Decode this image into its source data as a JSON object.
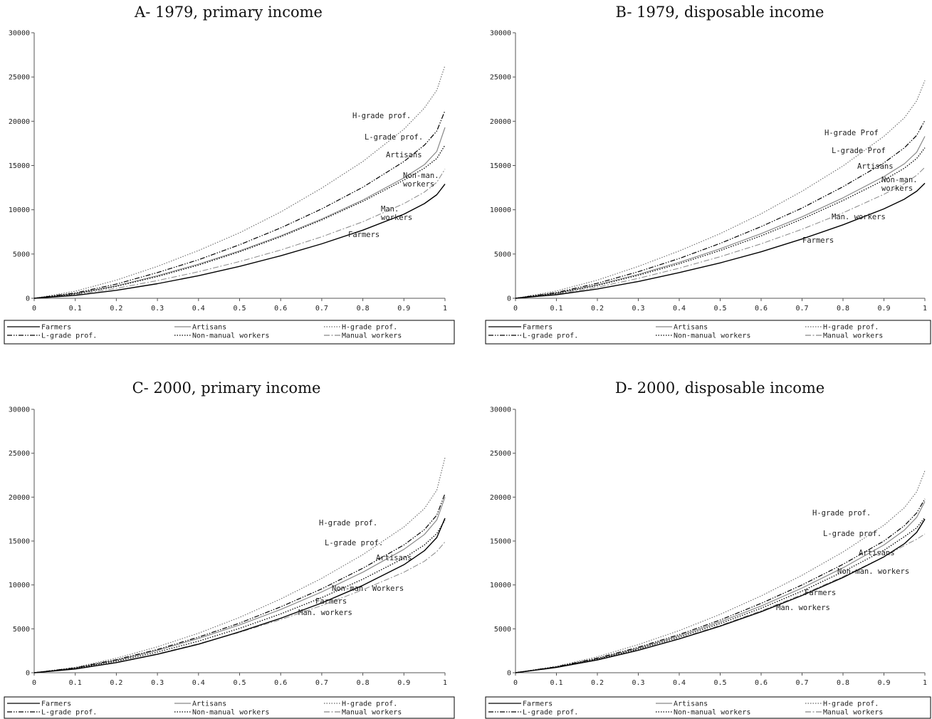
{
  "chart_data": [
    {
      "type": "line",
      "title": "A- 1979, primary income",
      "xlim": [
        0,
        1
      ],
      "ylim": [
        0,
        30000
      ],
      "x_ticks": [
        "0",
        "0.1",
        "0.2",
        "0.3",
        "0.4",
        "0.5",
        "0.6",
        "0.7",
        "0.8",
        "0.9",
        "1"
      ],
      "y_ticks": [
        "0",
        "5000",
        "10000",
        "15000",
        "20000",
        "25000",
        "30000"
      ],
      "legend_position": "bottom",
      "series": [
        {
          "name": "Farmers",
          "x": [
            0,
            0.1,
            0.2,
            0.3,
            0.4,
            0.5,
            0.6,
            0.7,
            0.8,
            0.9,
            0.95,
            0.98,
            1
          ],
          "y": [
            0,
            330,
            900,
            1650,
            2550,
            3600,
            4800,
            6150,
            7700,
            9500,
            10700,
            11700,
            12900
          ]
        },
        {
          "name": "Artisans",
          "x": [
            0,
            0.1,
            0.2,
            0.3,
            0.4,
            0.5,
            0.6,
            0.7,
            0.8,
            0.9,
            0.95,
            0.98,
            1
          ],
          "y": [
            0,
            520,
            1400,
            2550,
            3850,
            5350,
            7050,
            8950,
            11100,
            13600,
            15100,
            16600,
            19300
          ]
        },
        {
          "name": "H-grade prof.",
          "x": [
            0,
            0.1,
            0.2,
            0.3,
            0.4,
            0.5,
            0.6,
            0.7,
            0.8,
            0.9,
            0.95,
            0.98,
            1
          ],
          "y": [
            0,
            800,
            2050,
            3600,
            5400,
            7400,
            9750,
            12450,
            15450,
            19100,
            21500,
            23500,
            26300
          ]
        },
        {
          "name": "L-grade prof.",
          "x": [
            0,
            0.1,
            0.2,
            0.3,
            0.4,
            0.5,
            0.6,
            0.7,
            0.8,
            0.9,
            0.95,
            0.98,
            1
          ],
          "y": [
            0,
            600,
            1600,
            2900,
            4350,
            6050,
            7950,
            10100,
            12550,
            15450,
            17300,
            18900,
            21200
          ]
        },
        {
          "name": "Non-manual workers",
          "x": [
            0,
            0.1,
            0.2,
            0.3,
            0.4,
            0.5,
            0.6,
            0.7,
            0.8,
            0.9,
            0.95,
            0.98,
            1
          ],
          "y": [
            0,
            500,
            1350,
            2450,
            3750,
            5250,
            6950,
            8850,
            10950,
            13350,
            14700,
            15800,
            17300
          ]
        },
        {
          "name": "Manual workers",
          "x": [
            0,
            0.1,
            0.2,
            0.3,
            0.4,
            0.5,
            0.6,
            0.7,
            0.8,
            0.9,
            0.95,
            0.98,
            1
          ],
          "y": [
            0,
            420,
            1120,
            2000,
            3000,
            4150,
            5450,
            6950,
            8650,
            10700,
            12000,
            13100,
            14600
          ]
        }
      ],
      "annotations": [
        {
          "text": "H-grade prof.",
          "series": "H-grade prof."
        },
        {
          "text": "L-grade prof.",
          "series": "L-grade prof."
        },
        {
          "text": "Artisans",
          "series": "Artisans"
        },
        {
          "text": "Non-man.",
          "series": "Non-manual workers"
        },
        {
          "text": "workers",
          "series": "Non-manual workers"
        },
        {
          "text": "Man.",
          "series": "Manual workers"
        },
        {
          "text": "workers",
          "series": "Manual workers"
        },
        {
          "text": "Farmers",
          "series": "Farmers"
        }
      ]
    },
    {
      "type": "line",
      "title": "B- 1979, disposable income",
      "xlim": [
        0,
        1
      ],
      "ylim": [
        0,
        30000
      ],
      "x_ticks": [
        "0",
        "0.1",
        "0.2",
        "0.3",
        "0.4",
        "0.5",
        "0.6",
        "0.7",
        "0.8",
        "0.9",
        "1"
      ],
      "y_ticks": [
        "0",
        "5000",
        "10000",
        "15000",
        "20000",
        "25000",
        "30000"
      ],
      "legend_position": "bottom",
      "series": [
        {
          "name": "Farmers",
          "x": [
            0,
            0.1,
            0.2,
            0.3,
            0.4,
            0.5,
            0.6,
            0.7,
            0.8,
            0.9,
            0.95,
            0.98,
            1
          ],
          "y": [
            0,
            400,
            1050,
            1900,
            2900,
            4000,
            5250,
            6700,
            8300,
            10100,
            11200,
            12100,
            13000
          ]
        },
        {
          "name": "Artisans",
          "x": [
            0,
            0.1,
            0.2,
            0.3,
            0.4,
            0.5,
            0.6,
            0.7,
            0.8,
            0.9,
            0.95,
            0.98,
            1
          ],
          "y": [
            0,
            580,
            1520,
            2700,
            4050,
            5600,
            7300,
            9200,
            11350,
            13750,
            15200,
            16500,
            18300
          ]
        },
        {
          "name": "H-grade prof.",
          "x": [
            0,
            0.1,
            0.2,
            0.3,
            0.4,
            0.5,
            0.6,
            0.7,
            0.8,
            0.9,
            0.95,
            0.98,
            1
          ],
          "y": [
            0,
            820,
            2050,
            3600,
            5350,
            7300,
            9550,
            12100,
            14950,
            18300,
            20400,
            22300,
            24600
          ]
        },
        {
          "name": "L-grade prof.",
          "x": [
            0,
            0.1,
            0.2,
            0.3,
            0.4,
            0.5,
            0.6,
            0.7,
            0.8,
            0.9,
            0.95,
            0.98,
            1
          ],
          "y": [
            0,
            650,
            1700,
            3000,
            4500,
            6200,
            8100,
            10200,
            12600,
            15300,
            17000,
            18400,
            20100
          ]
        },
        {
          "name": "Non-manual workers",
          "x": [
            0,
            0.1,
            0.2,
            0.3,
            0.4,
            0.5,
            0.6,
            0.7,
            0.8,
            0.9,
            0.95,
            0.98,
            1
          ],
          "y": [
            0,
            560,
            1450,
            2600,
            3900,
            5400,
            7050,
            8950,
            11050,
            13350,
            14700,
            15800,
            17000
          ]
        },
        {
          "name": "Manual workers",
          "x": [
            0,
            0.1,
            0.2,
            0.3,
            0.4,
            0.5,
            0.6,
            0.7,
            0.8,
            0.9,
            0.95,
            0.98,
            1
          ],
          "y": [
            0,
            480,
            1250,
            2250,
            3400,
            4700,
            6150,
            7800,
            9650,
            11750,
            12950,
            13900,
            14800
          ]
        }
      ],
      "annotations": [
        {
          "text": "H-grade Prof",
          "series": "H-grade prof."
        },
        {
          "text": "L-grade Prof",
          "series": "L-grade prof."
        },
        {
          "text": "Artisans",
          "series": "Artisans"
        },
        {
          "text": "Non-man.",
          "series": "Non-manual workers"
        },
        {
          "text": "workers",
          "series": "Non-manual workers"
        },
        {
          "text": "Man. workers",
          "series": "Manual workers"
        },
        {
          "text": "Farmers",
          "series": "Farmers"
        }
      ]
    },
    {
      "type": "line",
      "title": "C- 2000, primary income",
      "xlim": [
        0,
        1
      ],
      "ylim": [
        0,
        30000
      ],
      "x_ticks": [
        "0",
        "0.1",
        "0.2",
        "0.3",
        "0.4",
        "0.5",
        "0.6",
        "0.7",
        "0.8",
        "0.9",
        "1"
      ],
      "y_ticks": [
        "0",
        "5000",
        "10000",
        "15000",
        "20000",
        "25000",
        "30000"
      ],
      "legend_position": "bottom",
      "series": [
        {
          "name": "Farmers",
          "x": [
            0,
            0.1,
            0.2,
            0.3,
            0.4,
            0.5,
            0.6,
            0.7,
            0.8,
            0.9,
            0.95,
            0.98,
            1
          ],
          "y": [
            0,
            420,
            1150,
            2100,
            3250,
            4650,
            6200,
            7950,
            9950,
            12300,
            13900,
            15400,
            17600
          ]
        },
        {
          "name": "Artisans",
          "x": [
            0,
            0.1,
            0.2,
            0.3,
            0.4,
            0.5,
            0.6,
            0.7,
            0.8,
            0.9,
            0.95,
            0.98,
            1
          ],
          "y": [
            0,
            540,
            1420,
            2550,
            3900,
            5450,
            7200,
            9200,
            11450,
            14050,
            15750,
            17400,
            20000
          ]
        },
        {
          "name": "H-grade prof.",
          "x": [
            0,
            0.1,
            0.2,
            0.3,
            0.4,
            0.5,
            0.6,
            0.7,
            0.8,
            0.9,
            0.95,
            0.98,
            1
          ],
          "y": [
            0,
            620,
            1650,
            2950,
            4500,
            6300,
            8400,
            10750,
            13450,
            16600,
            18700,
            20800,
            24500
          ]
        },
        {
          "name": "L-grade prof.",
          "x": [
            0,
            0.1,
            0.2,
            0.3,
            0.4,
            0.5,
            0.6,
            0.7,
            0.8,
            0.9,
            0.95,
            0.98,
            1
          ],
          "y": [
            0,
            560,
            1480,
            2650,
            4050,
            5650,
            7500,
            9550,
            11900,
            14550,
            16300,
            17950,
            20400
          ]
        },
        {
          "name": "Non-manual workers",
          "x": [
            0,
            0.1,
            0.2,
            0.3,
            0.4,
            0.5,
            0.6,
            0.7,
            0.8,
            0.9,
            0.95,
            0.98,
            1
          ],
          "y": [
            0,
            500,
            1320,
            2350,
            3600,
            5050,
            6700,
            8550,
            10650,
            13050,
            14550,
            15850,
            17400
          ]
        },
        {
          "name": "Manual workers",
          "x": [
            0,
            0.1,
            0.2,
            0.3,
            0.4,
            0.5,
            0.6,
            0.7,
            0.8,
            0.9,
            0.95,
            0.98,
            1
          ],
          "y": [
            0,
            460,
            1200,
            2150,
            3300,
            4600,
            6050,
            7650,
            9450,
            11450,
            12700,
            13800,
            14900
          ]
        }
      ],
      "annotations": [
        {
          "text": "H-grade prof.",
          "series": "H-grade prof."
        },
        {
          "text": "L-grade prof.",
          "series": "L-grade prof."
        },
        {
          "text": "Artisans",
          "series": "Artisans"
        },
        {
          "text": "Non-man. Workers",
          "series": "Non-manual workers"
        },
        {
          "text": "Farmers",
          "series": "Farmers"
        },
        {
          "text": "Man. workers",
          "series": "Manual workers"
        }
      ]
    },
    {
      "type": "line",
      "title": "D- 2000, disposable income",
      "xlim": [
        0,
        1
      ],
      "ylim": [
        0,
        30000
      ],
      "x_ticks": [
        "0",
        "0.1",
        "0.2",
        "0.3",
        "0.4",
        "0.5",
        "0.6",
        "0.7",
        "0.8",
        "0.9",
        "1"
      ],
      "y_ticks": [
        "0",
        "5000",
        "10000",
        "15000",
        "20000",
        "25000",
        "30000"
      ],
      "legend_position": "bottom",
      "series": [
        {
          "name": "Farmers",
          "x": [
            0,
            0.1,
            0.2,
            0.3,
            0.4,
            0.5,
            0.6,
            0.7,
            0.8,
            0.9,
            0.95,
            0.98,
            1
          ],
          "y": [
            0,
            600,
            1450,
            2550,
            3850,
            5300,
            6950,
            8800,
            10850,
            13200,
            14700,
            16000,
            17500
          ]
        },
        {
          "name": "Artisans",
          "x": [
            0,
            0.1,
            0.2,
            0.3,
            0.4,
            0.5,
            0.6,
            0.7,
            0.8,
            0.9,
            0.95,
            0.98,
            1
          ],
          "y": [
            0,
            660,
            1600,
            2800,
            4200,
            5800,
            7600,
            9650,
            11950,
            14550,
            16250,
            17700,
            19500
          ]
        },
        {
          "name": "H-grade prof.",
          "x": [
            0,
            0.1,
            0.2,
            0.3,
            0.4,
            0.5,
            0.6,
            0.7,
            0.8,
            0.9,
            0.95,
            0.98,
            1
          ],
          "y": [
            0,
            740,
            1820,
            3200,
            4800,
            6650,
            8750,
            11100,
            13750,
            16800,
            18800,
            20600,
            23000
          ]
        },
        {
          "name": "L-grade prof.",
          "x": [
            0,
            0.1,
            0.2,
            0.3,
            0.4,
            0.5,
            0.6,
            0.7,
            0.8,
            0.9,
            0.95,
            0.98,
            1
          ],
          "y": [
            0,
            680,
            1660,
            2900,
            4350,
            6000,
            7900,
            10000,
            12350,
            15000,
            16750,
            18200,
            19800
          ]
        },
        {
          "name": "Non-manual workers",
          "x": [
            0,
            0.1,
            0.2,
            0.3,
            0.4,
            0.5,
            0.6,
            0.7,
            0.8,
            0.9,
            0.95,
            0.98,
            1
          ],
          "y": [
            0,
            630,
            1540,
            2700,
            4050,
            5600,
            7350,
            9300,
            11500,
            13950,
            15500,
            16500,
            17700
          ]
        },
        {
          "name": "Manual workers",
          "x": [
            0,
            0.1,
            0.2,
            0.3,
            0.4,
            0.5,
            0.6,
            0.7,
            0.8,
            0.9,
            0.95,
            0.98,
            1
          ],
          "y": [
            0,
            610,
            1480,
            2600,
            3900,
            5380,
            7050,
            8900,
            10950,
            13200,
            14500,
            15200,
            15800
          ]
        }
      ],
      "annotations": [
        {
          "text": "H-grade prof.",
          "series": "H-grade prof."
        },
        {
          "text": "L-grade prof.",
          "series": "L-grade prof."
        },
        {
          "text": "Artisans",
          "series": "Artisans"
        },
        {
          "text": "Non-man. workers",
          "series": "Non-manual workers"
        },
        {
          "text": "Farmers",
          "series": "Farmers"
        },
        {
          "text": "Man. workers",
          "series": "Manual workers"
        }
      ]
    }
  ],
  "legend": [
    {
      "series": "Farmers",
      "label": "Farmers",
      "color": "#000000",
      "dash": "solid"
    },
    {
      "series": "Artisans",
      "label": "Artisans",
      "color": "#888888",
      "dash": "solid"
    },
    {
      "series": "H-grade prof.",
      "label": "H-grade prof.",
      "color": "#666666",
      "dash": "dotted"
    },
    {
      "series": "L-grade prof.",
      "label": "L-grade prof.",
      "color": "#000000",
      "dash": "dashdotdot"
    },
    {
      "series": "Non-manual workers",
      "label": "Non-manual workers",
      "color": "#000000",
      "dash": "dotted"
    },
    {
      "series": "Manual workers",
      "label": "Manual workers",
      "color": "#888888",
      "dash": "dashdot"
    }
  ]
}
